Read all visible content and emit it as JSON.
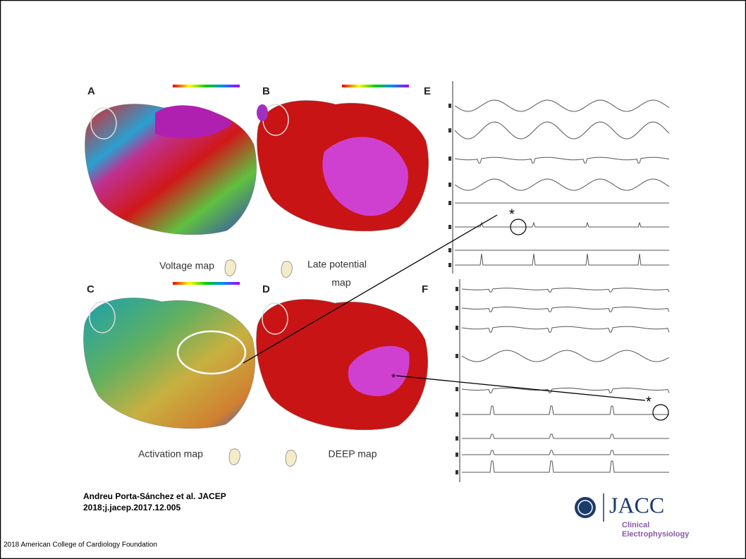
{
  "figure": {
    "panels": [
      {
        "letter": "A",
        "caption": [
          "Voltage map"
        ]
      },
      {
        "letter": "B",
        "caption": [
          "Late potential",
          "map"
        ]
      },
      {
        "letter": "C",
        "caption": [
          "Activation map"
        ]
      },
      {
        "letter": "D",
        "caption": [
          "DEEP map"
        ]
      }
    ],
    "ecg_panels": [
      {
        "letter": "E"
      },
      {
        "letter": "F"
      }
    ],
    "annotation_marker": "*"
  },
  "citation": [
    "Andreu Porta-Sánchez et al. JACEP",
    "2018;j.jacep.2017.12.005"
  ],
  "logo": {
    "name": "JACC",
    "subtitle": [
      "Clinical",
      "Electrophysiology"
    ]
  },
  "footer": "2018 American College of Cardiology Foundation"
}
